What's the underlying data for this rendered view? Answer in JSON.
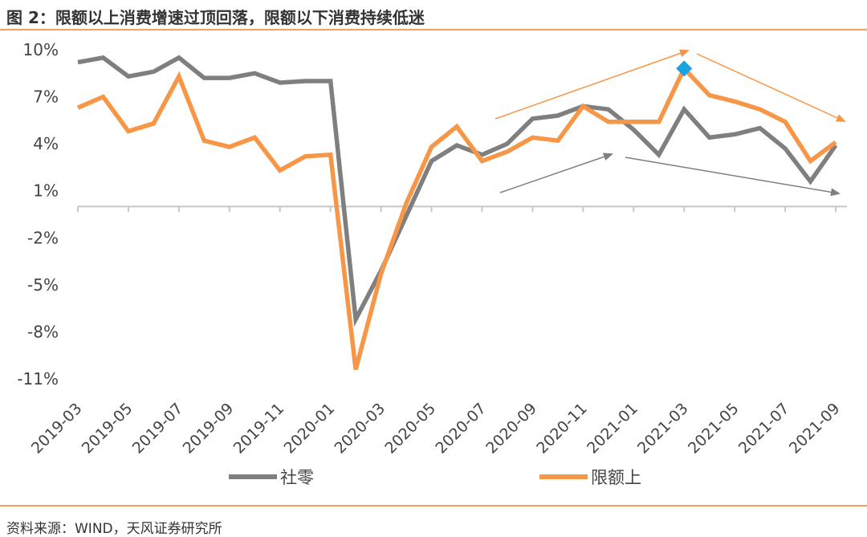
{
  "header": {
    "title": "图 2：限额以上消费增速过顶回落，限额以下消费持续低迷"
  },
  "footer": {
    "source": "资料来源：WIND，天风证券研究所"
  },
  "colors": {
    "retail": "#7f7f7f",
    "above_quota": "#f79646",
    "highlight": "#1aa3e0",
    "rule": "#f0a060"
  },
  "chart_data": {
    "type": "line",
    "x": [
      "2019-03",
      "2019-04",
      "2019-05",
      "2019-06",
      "2019-07",
      "2019-08",
      "2019-09",
      "2019-10",
      "2019-11",
      "2019-12",
      "2020-01",
      "2020-02",
      "2020-03",
      "2020-04",
      "2020-05",
      "2020-06",
      "2020-07",
      "2020-08",
      "2020-09",
      "2020-10",
      "2020-11",
      "2020-12",
      "2021-01",
      "2021-02",
      "2021-03",
      "2021-04",
      "2021-05",
      "2021-06",
      "2021-07",
      "2021-08",
      "2021-09"
    ],
    "x_tick_labels": [
      "2019-03",
      "2019-05",
      "2019-07",
      "2019-09",
      "2019-11",
      "2020-01",
      "2020-03",
      "2020-05",
      "2020-07",
      "2020-09",
      "2020-11",
      "2021-01",
      "2021-03",
      "2021-05",
      "2021-07",
      "2021-09"
    ],
    "y_tick_labels": [
      "10%",
      "7%",
      "4%",
      "1%",
      "-2%",
      "-5%",
      "-8%",
      "-11%"
    ],
    "ylim": [
      -11,
      10
    ],
    "series": [
      {
        "name": "社零",
        "color": "#7f7f7f",
        "values": [
          9.2,
          9.5,
          8.3,
          8.6,
          9.5,
          8.2,
          8.2,
          8.5,
          7.9,
          8.0,
          8.0,
          -7.2,
          -4.1,
          -0.6,
          2.9,
          3.9,
          3.3,
          4.0,
          5.6,
          5.8,
          6.4,
          6.2,
          4.9,
          3.3,
          6.2,
          4.4,
          4.6,
          5.0,
          3.7,
          1.6,
          3.9
        ]
      },
      {
        "name": "限额上",
        "color": "#f79646",
        "values": [
          6.3,
          7.0,
          4.8,
          5.3,
          8.3,
          4.2,
          3.8,
          4.4,
          2.3,
          3.2,
          3.3,
          -10.4,
          -4.3,
          0.2,
          3.8,
          5.1,
          2.9,
          3.5,
          4.4,
          4.2,
          6.4,
          5.4,
          5.4,
          5.4,
          8.8,
          7.1,
          6.7,
          6.2,
          5.4,
          2.9,
          4.1
        ]
      }
    ],
    "highlight_point": {
      "x": "2021-03",
      "y": 8.8
    },
    "legend": {
      "placement": "bottom",
      "items": [
        "社零",
        "限额上"
      ]
    },
    "grid": false
  }
}
